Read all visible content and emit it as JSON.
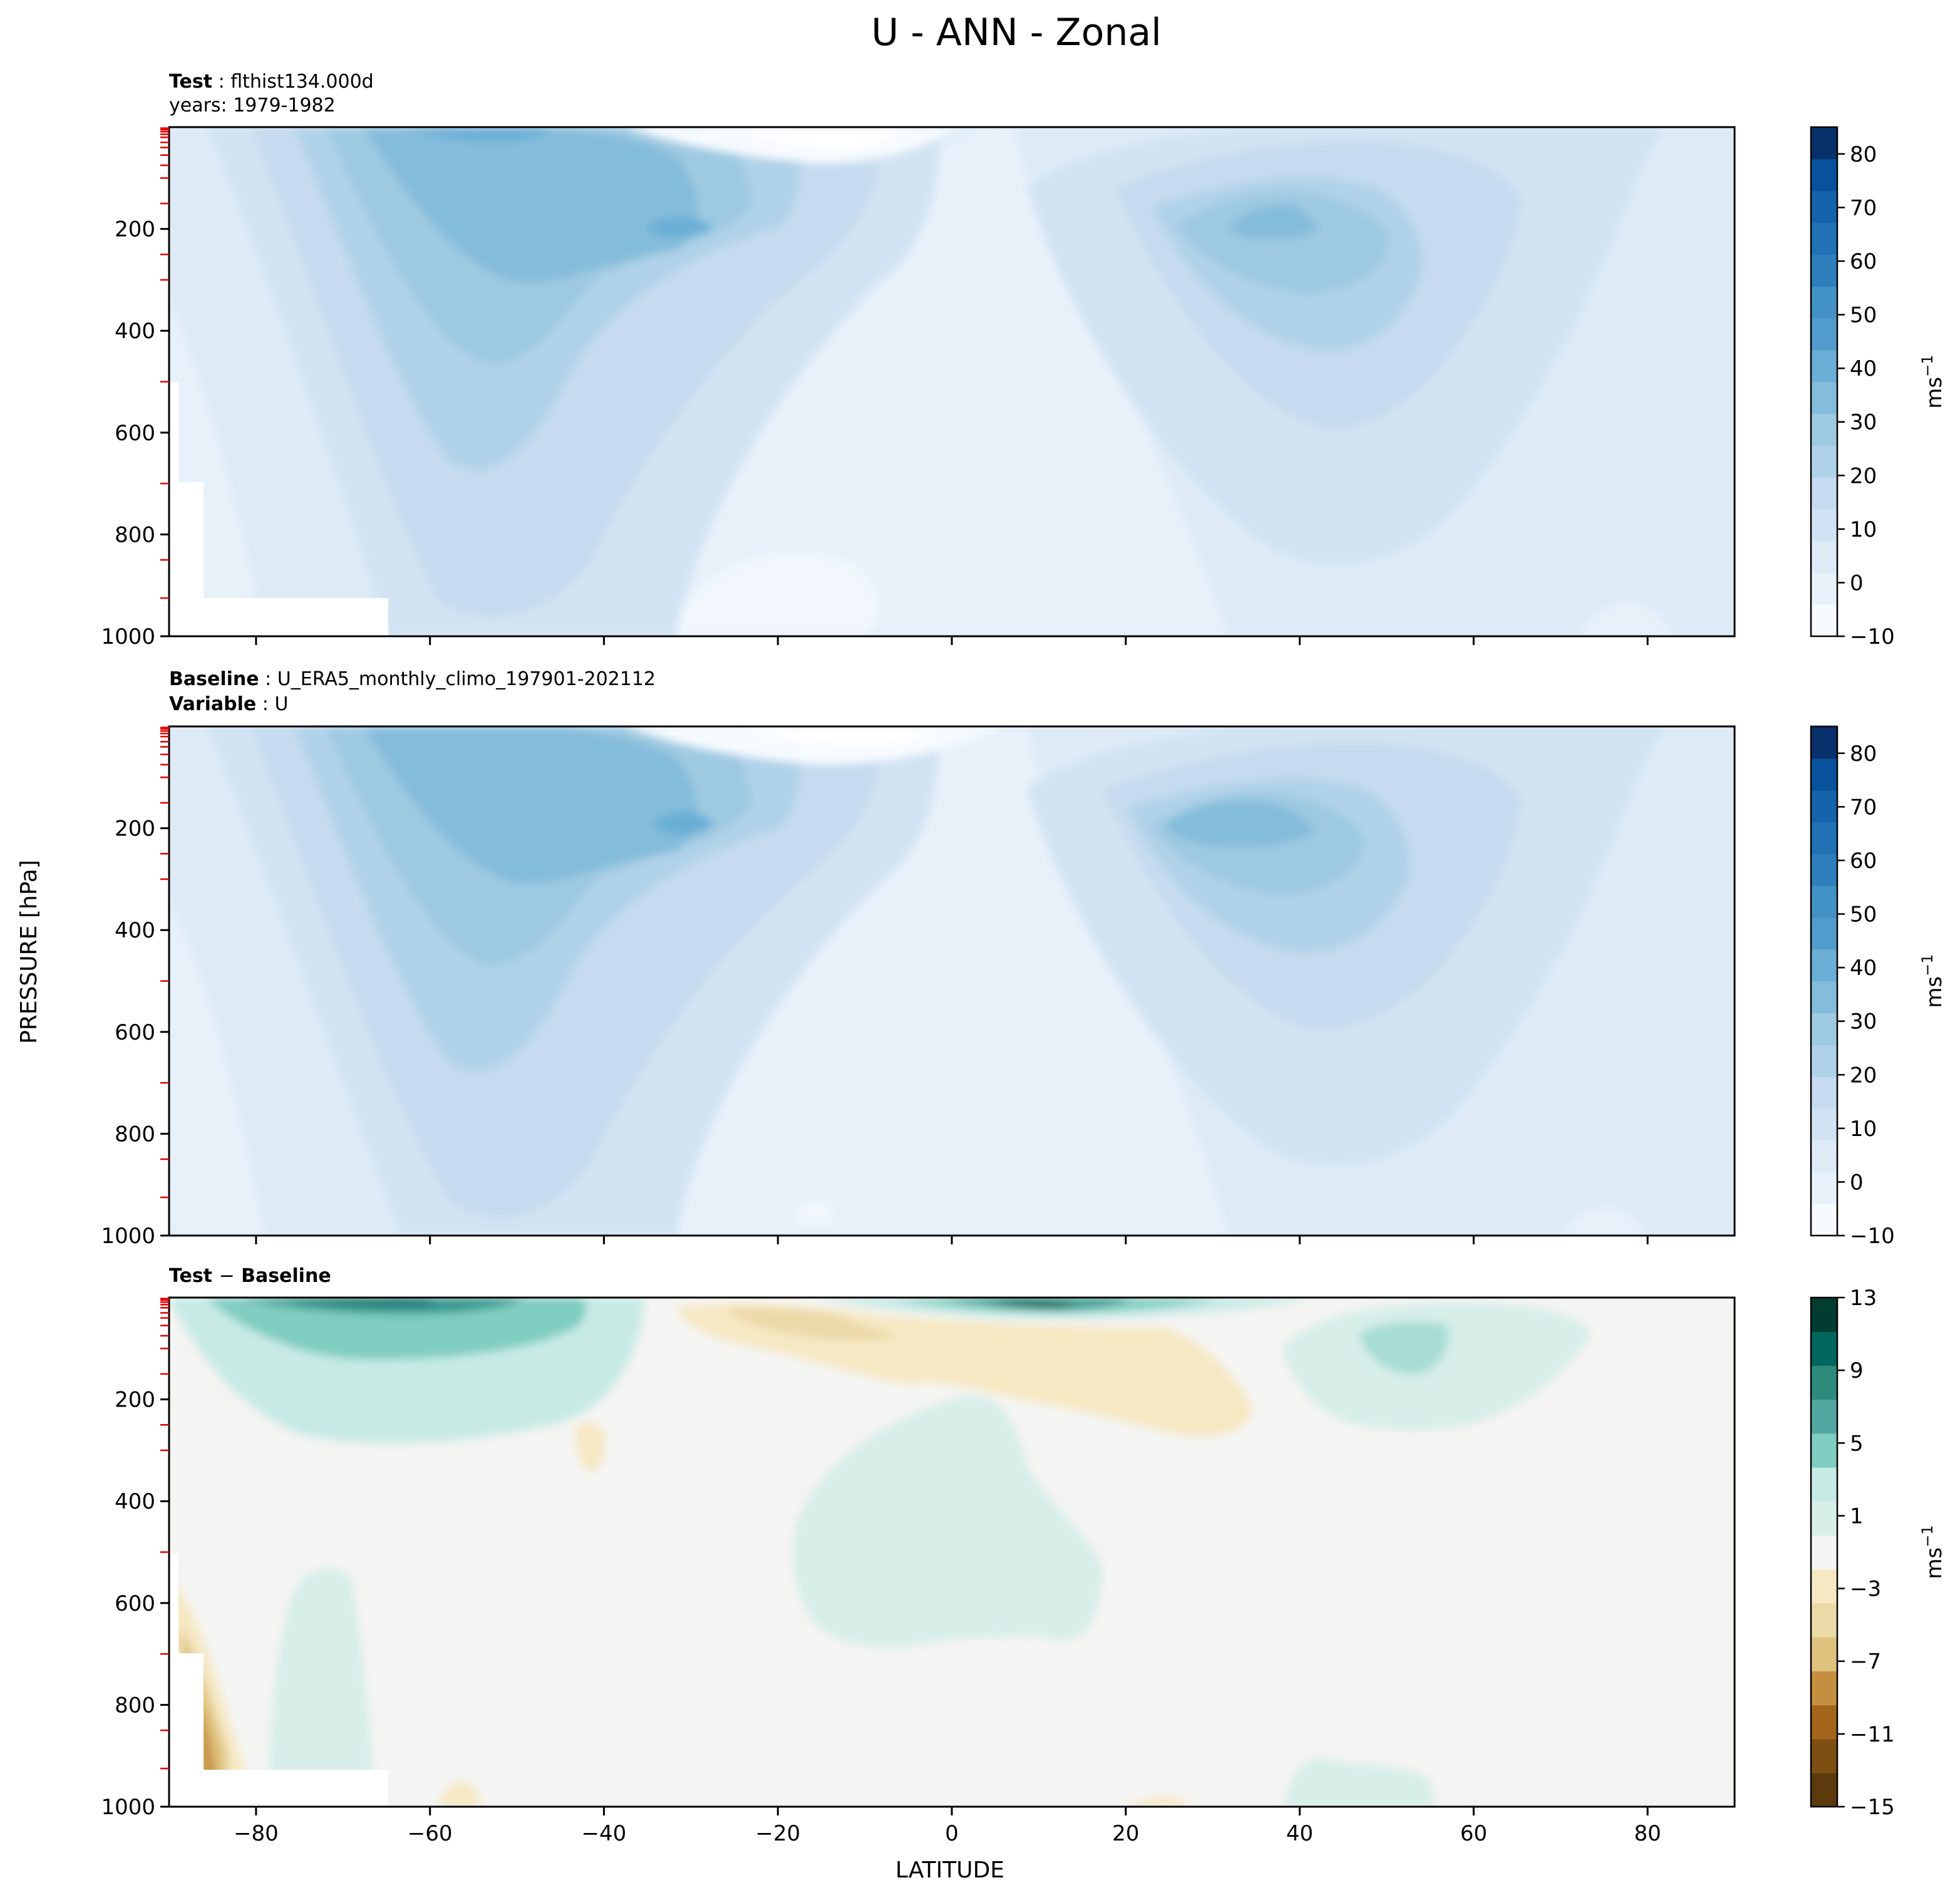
{
  "figure": {
    "title": "U - ANN - Zonal",
    "ylabel_shared": "PRESSURE [hPa]",
    "xlabel": "LATITUDE"
  },
  "colors": {
    "blues": [
      "#f7fbff",
      "#e8f1fa",
      "#deebf7",
      "#d1e3f3",
      "#c6dbef",
      "#b0d2e8",
      "#9ecae1",
      "#84bcdb",
      "#6baed6",
      "#519ccc",
      "#4292c6",
      "#2f7ebc",
      "#2171b5",
      "#1563aa",
      "#08519c",
      "#08306b"
    ],
    "diff": [
      "#5c3a0c",
      "#7e4f12",
      "#a3661c",
      "#c4903f",
      "#dfc27d",
      "#ecd9a8",
      "#f6e8c3",
      "#f4f4f2",
      "#d7eee9",
      "#c7eae5",
      "#80cdc1",
      "#52a8a0",
      "#2e8b7c",
      "#01665e",
      "#003c30"
    ],
    "frame": "#000000",
    "red_ticks": "#e00000"
  },
  "chart_data": [
    {
      "type": "contour",
      "panel": "test",
      "title_key": "Test",
      "title_value": "flthist134.000d",
      "subtitle": "years: 1979-1982",
      "xlim": [
        -90,
        90
      ],
      "ylim": [
        1000,
        0
      ],
      "yticks": [
        "200",
        "400",
        "600",
        "800",
        "1000"
      ],
      "colorbar": {
        "label": "ms",
        "label_sup": "−1",
        "ticks": [
          "80",
          "70",
          "60",
          "50",
          "40",
          "30",
          "20",
          "10",
          "0",
          "−10"
        ],
        "range": [
          -10,
          85
        ]
      },
      "jets": [
        {
          "lat": -30,
          "pressure": 200,
          "max": 38
        },
        {
          "lat": 38,
          "pressure": 200,
          "max": 33
        }
      ]
    },
    {
      "type": "contour",
      "panel": "baseline",
      "title_key": "Baseline",
      "title_value": "U_ERA5_monthly_climo_197901-202112",
      "subtitle_key": "Variable",
      "subtitle_value": "U",
      "xlim": [
        -90,
        90
      ],
      "ylim": [
        1000,
        0
      ],
      "yticks": [
        "200",
        "400",
        "600",
        "800",
        "1000"
      ],
      "colorbar": {
        "label": "ms",
        "label_sup": "−1",
        "ticks": [
          "80",
          "70",
          "60",
          "50",
          "40",
          "30",
          "20",
          "10",
          "0",
          "−10"
        ],
        "range": [
          -10,
          85
        ]
      },
      "jets": [
        {
          "lat": -30,
          "pressure": 200,
          "max": 38
        },
        {
          "lat": 35,
          "pressure": 200,
          "max": 36
        }
      ]
    },
    {
      "type": "contour",
      "panel": "difference",
      "title_key_a": "Test",
      "title_sep": "−",
      "title_key_b": "Baseline",
      "xlim": [
        -90,
        90
      ],
      "ylim": [
        1000,
        0
      ],
      "yticks": [
        "200",
        "400",
        "600",
        "800",
        "1000"
      ],
      "xticks": [
        "−80",
        "−60",
        "−40",
        "−20",
        "0",
        "20",
        "40",
        "60",
        "80"
      ],
      "colorbar": {
        "label": "ms",
        "label_sup": "−1",
        "ticks": [
          "13",
          "9",
          "5",
          "1",
          "−3",
          "−7",
          "−11",
          "−15"
        ],
        "range": [
          -15,
          13
        ]
      }
    }
  ]
}
